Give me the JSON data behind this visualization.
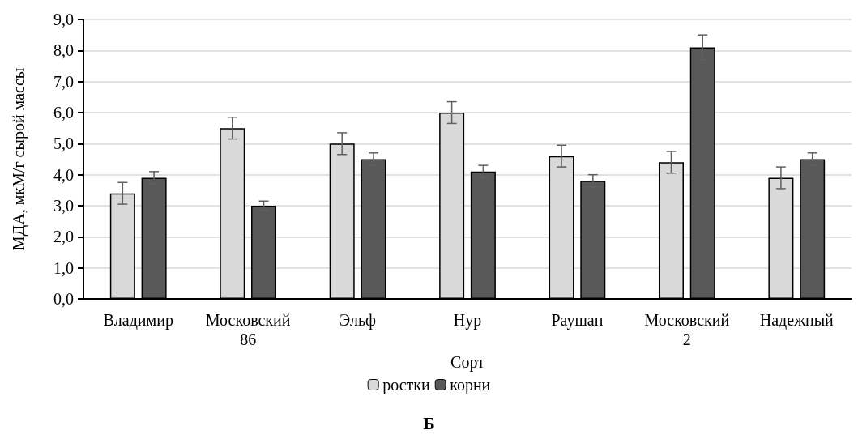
{
  "chart_data": {
    "type": "bar",
    "title": "Б",
    "xlabel": "Сорт",
    "ylabel": "МДА, мкМ/г сырой массы",
    "categories": [
      "Владимир",
      "Московский 86",
      "Эльф",
      "Нур",
      "Раушан",
      "Московский 2",
      "Надежный"
    ],
    "series": [
      {
        "name": "ростки",
        "color": "#d9d9d9",
        "values": [
          3.4,
          5.5,
          5.0,
          6.0,
          4.6,
          4.4,
          3.9
        ],
        "errors": [
          0.35,
          0.35,
          0.35,
          0.35,
          0.35,
          0.35,
          0.35
        ]
      },
      {
        "name": "корни",
        "color": "#595959",
        "values": [
          3.9,
          3.0,
          4.5,
          4.1,
          3.8,
          8.1,
          4.5
        ],
        "errors": [
          0.2,
          0.15,
          0.2,
          0.2,
          0.2,
          0.4,
          0.2
        ]
      }
    ],
    "ylim": [
      0,
      9
    ],
    "yticks": [
      {
        "value": 0,
        "label": "0,0"
      },
      {
        "value": 1,
        "label": "1,0"
      },
      {
        "value": 2,
        "label": "2,0"
      },
      {
        "value": 3,
        "label": "3,0"
      },
      {
        "value": 4,
        "label": "4,0"
      },
      {
        "value": 5,
        "label": "5,0"
      },
      {
        "value": 6,
        "label": "6,0"
      },
      {
        "value": 7,
        "label": "7,0"
      },
      {
        "value": 8,
        "label": "8,0"
      },
      {
        "value": 9,
        "label": "9,0"
      }
    ],
    "grid": "y",
    "legend": "bottom"
  }
}
